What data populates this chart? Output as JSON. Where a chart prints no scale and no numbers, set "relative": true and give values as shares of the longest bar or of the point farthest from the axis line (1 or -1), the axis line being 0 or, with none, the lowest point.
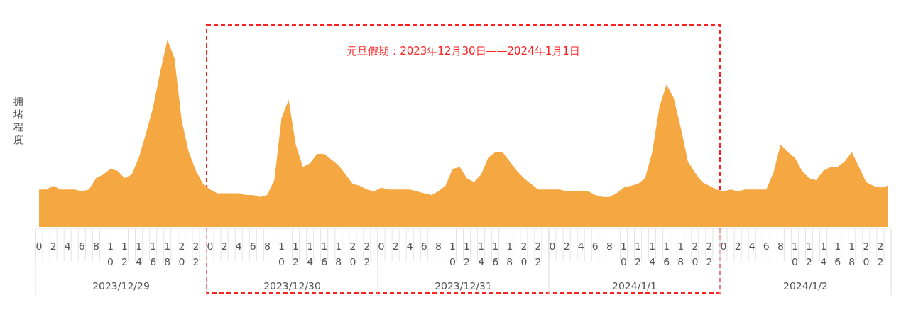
{
  "chart_data": {
    "type": "area",
    "relative": true,
    "ylabel": "拥堵程度",
    "categories": [
      "0",
      null,
      "2",
      null,
      "4",
      null,
      "6",
      null,
      "8",
      null,
      "10",
      null,
      "12",
      null,
      "14",
      null,
      "16",
      null,
      "18",
      null,
      "20",
      null,
      "22",
      null,
      "0",
      null,
      "2",
      null,
      "4",
      null,
      "6",
      null,
      "8",
      null,
      "10",
      null,
      "12",
      null,
      "14",
      null,
      "16",
      null,
      "18",
      null,
      "20",
      null,
      "22",
      null,
      "0",
      null,
      "2",
      null,
      "4",
      null,
      "6",
      null,
      "8",
      null,
      "10",
      null,
      "12",
      null,
      "14",
      null,
      "16",
      null,
      "18",
      null,
      "20",
      null,
      "22",
      null,
      "0",
      null,
      "2",
      null,
      "4",
      null,
      "6",
      null,
      "8",
      null,
      "10",
      null,
      "12",
      null,
      "14",
      null,
      "16",
      null,
      "18",
      null,
      "20",
      null,
      "22",
      null,
      "0",
      null,
      "2",
      null,
      "4",
      null,
      "6",
      null,
      "8",
      null,
      "10",
      null,
      "12",
      null,
      "14",
      null,
      "16",
      null,
      "18",
      null,
      "20",
      null,
      "22",
      null
    ],
    "series": [
      {
        "color": "#f5a742",
        "values": [
          0.2,
          0.2,
          0.22,
          0.2,
          0.2,
          0.2,
          0.19,
          0.2,
          0.26,
          0.28,
          0.31,
          0.3,
          0.26,
          0.28,
          0.37,
          0.5,
          0.64,
          0.83,
          1,
          0.9,
          0.57,
          0.4,
          0.3,
          0.23,
          0.2,
          0.18,
          0.18,
          0.18,
          0.18,
          0.17,
          0.17,
          0.16,
          0.17,
          0.25,
          0.58,
          0.68,
          0.44,
          0.32,
          0.34,
          0.39,
          0.39,
          0.36,
          0.33,
          0.28,
          0.23,
          0.22,
          0.2,
          0.19,
          0.21,
          0.2,
          0.2,
          0.2,
          0.2,
          0.19,
          0.18,
          0.17,
          0.19,
          0.22,
          0.31,
          0.32,
          0.26,
          0.24,
          0.28,
          0.37,
          0.4,
          0.4,
          0.35,
          0.3,
          0.26,
          0.23,
          0.2,
          0.2,
          0.2,
          0.2,
          0.19,
          0.19,
          0.19,
          0.19,
          0.17,
          0.16,
          0.16,
          0.18,
          0.21,
          0.22,
          0.23,
          0.26,
          0.4,
          0.64,
          0.76,
          0.69,
          0.53,
          0.35,
          0.29,
          0.24,
          0.22,
          0.2,
          0.19,
          0.2,
          0.19,
          0.2,
          0.2,
          0.2,
          0.2,
          0.29,
          0.44,
          0.4,
          0.37,
          0.3,
          0.26,
          0.25,
          0.3,
          0.32,
          0.32,
          0.35,
          0.4,
          0.32,
          0.24,
          0.22,
          0.21,
          0.22
        ]
      }
    ],
    "annotations": [
      "元旦假期：2023年12月30日——2024年1月1日",
      "2023/12/29",
      "2023/12/30",
      "2023/12/31",
      "2024/1/1",
      "2024/1/2"
    ]
  }
}
